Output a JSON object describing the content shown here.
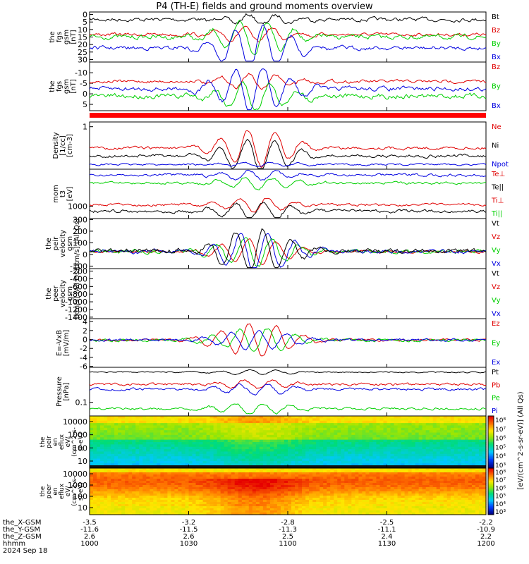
{
  "title": "P4 (TH-E) fields and ground moments overview",
  "colors": {
    "black": "#000000",
    "red": "#e00000",
    "green": "#00d000",
    "blue": "#0000e0"
  },
  "chart_data": [
    {
      "type": "line",
      "panel": "fgs_gsm",
      "ylabel": [
        "the",
        "fgs",
        "gsm",
        "[nT]"
      ],
      "ylim": [
        0,
        31
      ],
      "yticks": [
        "0",
        "5",
        "10",
        "15",
        "20",
        "25",
        "30"
      ],
      "legend": [
        "Bt",
        "Bz",
        "By",
        "Bx"
      ],
      "series": [
        {
          "name": "Bt",
          "base": 27
        },
        {
          "name": "Bz",
          "base": 17
        },
        {
          "name": "By",
          "base": 15
        },
        {
          "name": "Bx",
          "base": 9
        }
      ]
    },
    {
      "type": "line",
      "panel": "fgs_gsm_zoom",
      "ylabel": [
        "the",
        "fgs",
        "gsm",
        "[nT]"
      ],
      "ylim": [
        -14,
        9
      ],
      "yticks": [
        "-10",
        "-5",
        "0",
        "5"
      ],
      "legend": [
        "Bz",
        "By",
        "Bx"
      ],
      "series": [
        {
          "name": "Bz",
          "base": 1
        },
        {
          "name": "By",
          "base": -7
        },
        {
          "name": "Bx",
          "base": -3
        }
      ]
    },
    {
      "type": "line",
      "panel": "density",
      "ylabel": [
        "Density",
        "[1/cc]",
        "[cm-3]"
      ],
      "ylim": [
        0.3,
        1.3
      ],
      "yticks": [
        "1"
      ],
      "scale": "log",
      "legend": [
        "Ne",
        "Ni",
        "Npot"
      ]
    },
    {
      "type": "line",
      "panel": "temperature",
      "ylabel": [
        "mom",
        "t3",
        "[eV]"
      ],
      "ylim": [
        300,
        50000
      ],
      "yticks": [
        "1000"
      ],
      "scale": "log",
      "legend": [
        "Te⊥",
        "Te||",
        "Ti⊥",
        "Ti||"
      ]
    },
    {
      "type": "line",
      "panel": "peir_velocity",
      "ylabel": [
        "the",
        "peir",
        "velocity",
        "gsm",
        "[km/s] (All Qs)"
      ],
      "ylim": [
        -100,
        310
      ],
      "yticks": [
        "300",
        "200",
        "100",
        "0",
        "-100"
      ],
      "legend": [
        "Vt",
        "Vz",
        "Vy",
        "Vx"
      ]
    },
    {
      "type": "line",
      "panel": "peer_velocity",
      "ylabel": [
        "the",
        "peer",
        "velocity",
        "gsm",
        "[km/s] (All Qs)"
      ],
      "ylim": [
        -1450,
        0
      ],
      "yticks": [
        "-200",
        "-400",
        "-600",
        "-800",
        "-1000",
        "-1200",
        "-1400"
      ],
      "legend": [
        "Vt",
        "Vz",
        "Vy",
        "Vx"
      ]
    },
    {
      "type": "line",
      "panel": "exb",
      "ylabel": [
        "E=-VxB",
        "[mV/m]"
      ],
      "ylim": [
        -6.5,
        4.5
      ],
      "yticks": [
        "4",
        "2",
        "0",
        "-2",
        "-4",
        "-6"
      ],
      "legend": [
        "Ez",
        "Ey",
        "Ex"
      ]
    },
    {
      "type": "line",
      "panel": "pressure",
      "ylabel": [
        "Pressure",
        "[nPa]"
      ],
      "ylim": [
        0.05,
        1
      ],
      "yticks": [
        "0.1"
      ],
      "scale": "log",
      "legend": [
        "Pt",
        "Pb",
        "Pe",
        "Pi"
      ]
    },
    {
      "type": "heatmap",
      "panel": "peir_en_eflux",
      "ylabel": [
        "the",
        "peir",
        "en",
        "eflux",
        "eV/",
        "(cm^2-s-",
        "sr-eV)"
      ],
      "yticks": [
        "10000",
        "1000",
        "100",
        "10"
      ],
      "colorbar": {
        "ticks": [
          "10⁸",
          "10⁷",
          "10⁶",
          "10⁵",
          "10⁴",
          "10³"
        ],
        "label": "[eV/(cm^2-s-sr-eV)] (All Qs)"
      }
    },
    {
      "type": "heatmap",
      "panel": "peer_en_eflux",
      "ylabel": [
        "the",
        "peer",
        "en",
        "eflux",
        "eV/",
        "(cm^2-s-",
        "sr-eV)"
      ],
      "yticks": [
        "10000",
        "1000",
        "100",
        "10"
      ],
      "colorbar": {
        "ticks": [
          "10⁸",
          "10⁷",
          "10⁶",
          "10⁵",
          "10⁴",
          "10³"
        ],
        "label": "[eV/(cm^2-s-sr-eV)] (All Qs)"
      }
    }
  ],
  "xaxis": {
    "labels": [
      "the_X-GSM",
      "the_Y-GSM",
      "the_Z-GSM",
      "hhmm",
      "2024 Sep 18"
    ],
    "columns": [
      [
        "-3.5",
        "-11.6",
        "2.6",
        "1000"
      ],
      [
        "-3.2",
        "-11.5",
        "2.6",
        "1030"
      ],
      [
        "-2.8",
        "-11.3",
        "2.5",
        "1100"
      ],
      [
        "-2.5",
        "-11.1",
        "2.4",
        "1130"
      ],
      [
        "-2.2",
        "-10.9",
        "2.2",
        "1200"
      ]
    ]
  }
}
